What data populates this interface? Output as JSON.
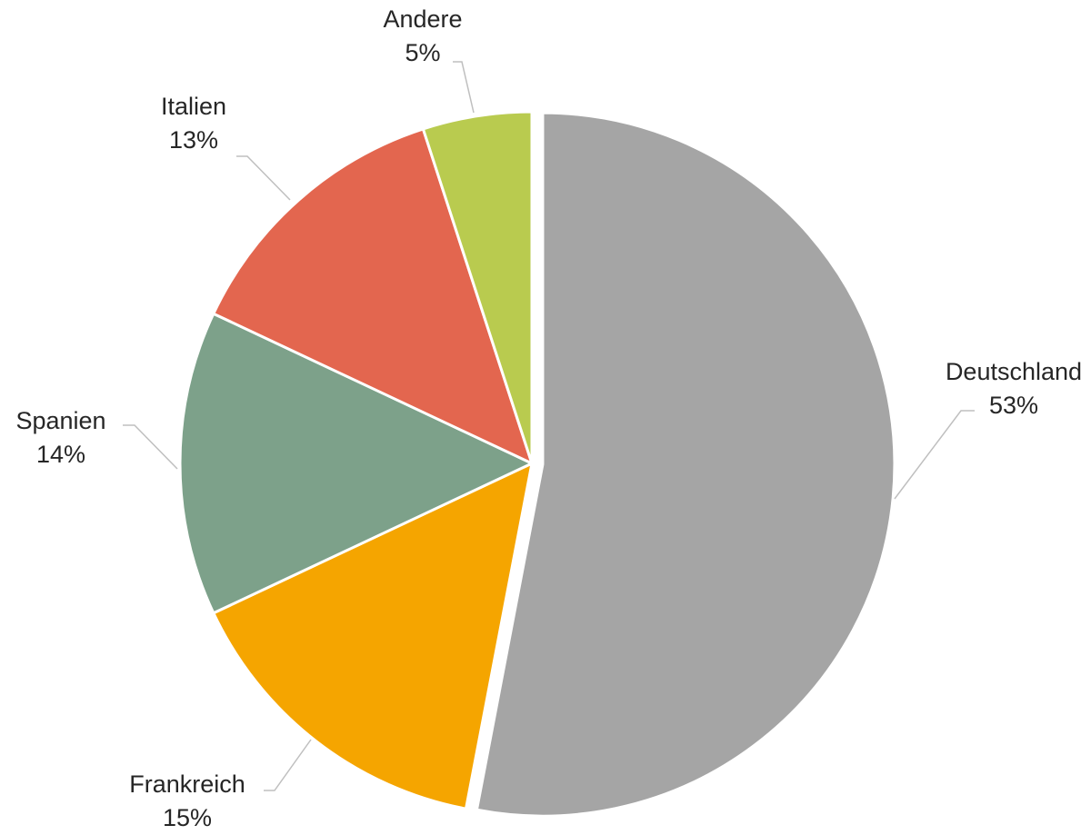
{
  "chart_data": {
    "type": "pie",
    "title": "",
    "slices": [
      {
        "label": "Deutschland",
        "value": 53,
        "value_label": "53%",
        "color": "#a5a5a5",
        "exploded": true
      },
      {
        "label": "Frankreich",
        "value": 15,
        "value_label": "15%",
        "color": "#f5a500"
      },
      {
        "label": "Spanien",
        "value": 14,
        "value_label": "14%",
        "color": "#7da18a"
      },
      {
        "label": "Italien",
        "value": 13,
        "value_label": "13%",
        "color": "#e3664f"
      },
      {
        "label": "Andere",
        "value": 5,
        "value_label": "5%",
        "color": "#b9cb4f"
      }
    ],
    "start_angle": "12 o'clock",
    "direction": "clockwise",
    "legend": "none",
    "data_labels": "outside with leader lines"
  }
}
